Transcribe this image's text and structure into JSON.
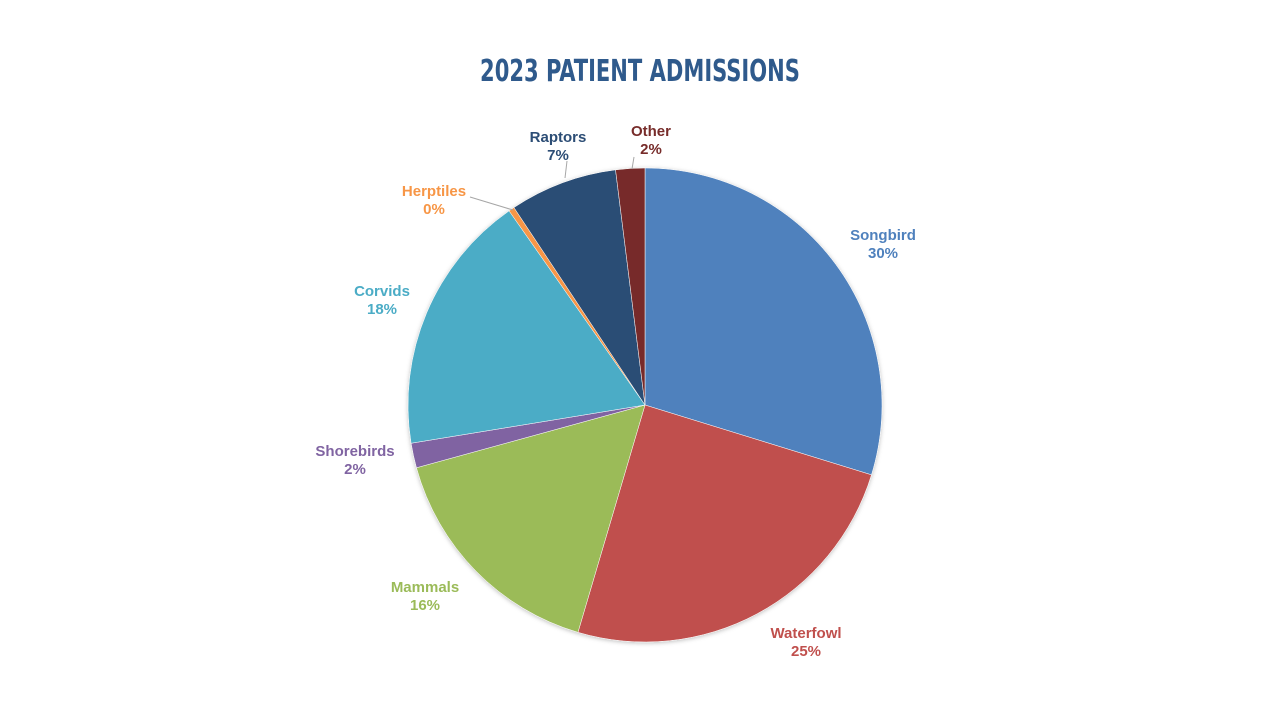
{
  "chart_data": {
    "type": "pie",
    "title": "2023 PATIENT ADMISSIONS",
    "slices": [
      {
        "label": "Songbird",
        "percent_label": "30%",
        "value": 30.0,
        "color": "#4f81bd"
      },
      {
        "label": "Waterfowl",
        "percent_label": "25%",
        "value": 25.0,
        "color": "#c0504d"
      },
      {
        "label": "Mammals",
        "percent_label": "16%",
        "value": 16.3,
        "color": "#9bbb59"
      },
      {
        "label": "Shorebirds",
        "percent_label": "2%",
        "value": 1.7,
        "color": "#8064a2"
      },
      {
        "label": "Corvids",
        "percent_label": "18%",
        "value": 18.0,
        "color": "#4bacc6"
      },
      {
        "label": "Herptiles",
        "percent_label": "0%",
        "value": 0.4,
        "color": "#f79646"
      },
      {
        "label": "Raptors",
        "percent_label": "7%",
        "value": 7.4,
        "color": "#2c4d75"
      },
      {
        "label": "Other",
        "percent_label": "2%",
        "value": 2.0,
        "color": "#772c2a"
      }
    ]
  }
}
